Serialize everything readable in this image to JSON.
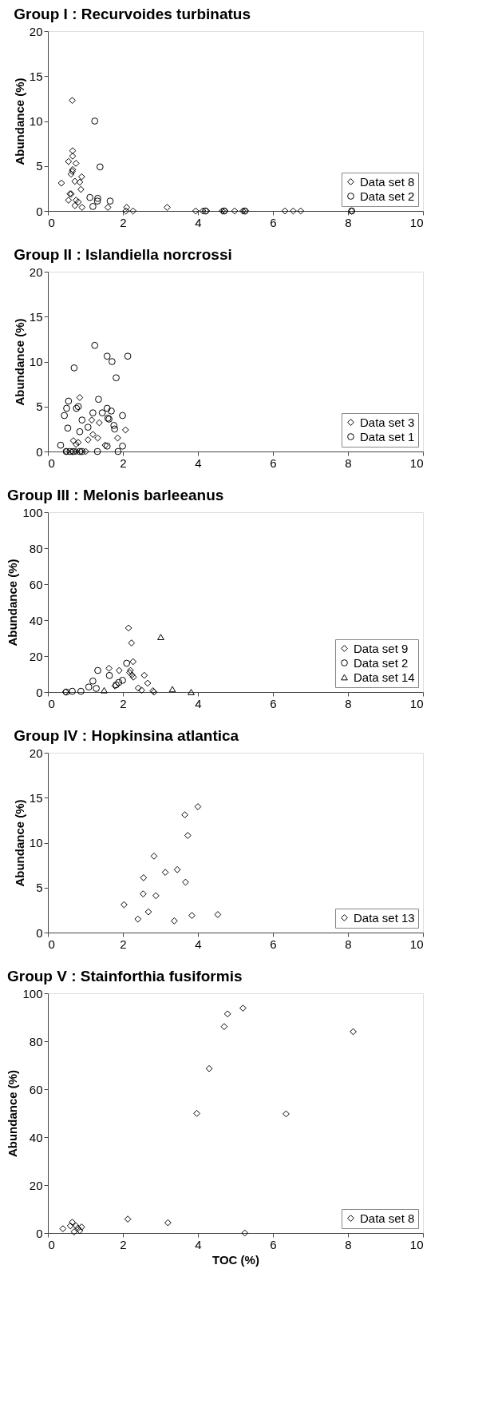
{
  "chart_data": [
    {
      "type": "scatter",
      "title": "Group I : Recurvoides turbinatus",
      "ylabel": "Abundance (%)",
      "xlim": [
        0,
        10
      ],
      "xticks": [
        0,
        2,
        4,
        6,
        8,
        10
      ],
      "ylim": [
        0,
        20
      ],
      "yticks": [
        0,
        5,
        10,
        15,
        20
      ],
      "grid": false,
      "legend": "bottom right",
      "series": [
        {
          "name": "Data set 8",
          "color": "#000000",
          "marker": "diamond",
          "x": [
            0.65,
            0.66,
            0.66,
            0.55,
            0.75,
            0.66,
            0.65,
            0.62,
            0.9,
            0.36,
            0.72,
            0.85,
            0.88,
            0.59,
            0.62,
            0.55,
            0.75,
            0.81,
            0.72,
            0.91,
            1.04,
            1.6,
            2.1,
            2.27,
            2.08,
            3.18,
            3.94,
            4.13,
            4.23,
            4.65,
            4.72,
            4.98,
            5.2,
            5.27,
            6.32,
            6.54,
            6.74,
            8.1
          ],
          "values": [
            12.3,
            6.7,
            6.1,
            5.5,
            5.3,
            4.6,
            4.4,
            4.1,
            3.8,
            3.1,
            3.3,
            3.2,
            2.4,
            1.9,
            1.9,
            1.2,
            1.2,
            1.0,
            0.6,
            0.4,
            null,
            0.4,
            0.4,
            0,
            0,
            0.4,
            0,
            0,
            0,
            0,
            0,
            0,
            0,
            0,
            0,
            0,
            0,
            0
          ]
        },
        {
          "name": "Data set 2",
          "color": "#000000",
          "marker": "circle",
          "x": [
            1.25,
            1.39,
            1.12,
            1.33,
            1.32,
            1.66,
            1.2,
            4.2,
            4.7,
            5.25,
            8.1
          ],
          "values": [
            10.0,
            4.9,
            1.5,
            1.4,
            1.1,
            1.1,
            0.5,
            0,
            0,
            0,
            0
          ]
        }
      ]
    },
    {
      "type": "scatter",
      "title": "Group II : Islandiella norcrossi",
      "ylabel": "Abundance (%)",
      "xlim": [
        0,
        10
      ],
      "xticks": [
        0,
        2,
        4,
        6,
        8,
        10
      ],
      "ylim": [
        0,
        20
      ],
      "yticks": [
        0,
        5,
        10,
        15,
        20
      ],
      "grid": false,
      "legend": "bottom right",
      "series": [
        {
          "name": "Data set 3",
          "color": "#000000",
          "marker": "diamond",
          "x": [
            0.85,
            1.17,
            1.37,
            2.07,
            1.2,
            1.33,
            1.07,
            1.86,
            0.68,
            0.81,
            0.75,
            1.53,
            0.49,
            0.65,
            0.75,
            0.88,
            1.01
          ],
          "values": [
            6.0,
            3.5,
            3.2,
            2.4,
            1.9,
            1.5,
            1.3,
            1.5,
            1.2,
            1.0,
            0.8,
            0.7,
            0,
            0,
            0,
            0,
            0
          ]
        },
        {
          "name": "Data set 1",
          "color": "#000000",
          "marker": "circle",
          "x": [
            1.25,
            1.58,
            1.71,
            2.13,
            0.7,
            1.82,
            0.55,
            0.5,
            0.81,
            0.76,
            1.35,
            0.44,
            1.2,
            1.45,
            1.58,
            1.69,
            1.99,
            0.91,
            1.6,
            1.63,
            1.76,
            1.78,
            1.07,
            0.53,
            0.85,
            0.34,
            1.99,
            1.58,
            1.32,
            1.87,
            0.49,
            0.59,
            0.68,
            0.85,
            0.91
          ],
          "values": [
            11.8,
            10.6,
            10.0,
            10.6,
            9.3,
            8.2,
            5.6,
            4.8,
            5.0,
            4.8,
            5.8,
            4.0,
            4.3,
            4.3,
            4.8,
            4.5,
            4.0,
            3.5,
            3.7,
            3.6,
            2.9,
            2.5,
            2.7,
            2.6,
            2.2,
            0.7,
            0.6,
            0.6,
            0,
            0,
            0,
            0,
            0,
            0,
            0
          ]
        }
      ]
    },
    {
      "type": "scatter",
      "title": "Group III : Melonis barleeanus",
      "ylabel": "Abundance (%)",
      "xlim": [
        0,
        10
      ],
      "xticks": [
        0,
        2,
        4,
        6,
        8,
        10
      ],
      "ylim": [
        0,
        100
      ],
      "yticks": [
        0,
        20,
        40,
        60,
        80,
        100
      ],
      "grid": false,
      "legend": "bottom right",
      "series": [
        {
          "name": "Data set 9",
          "color": "#000000",
          "marker": "diamond",
          "x": [
            2.15,
            2.23,
            2.27,
            1.63,
            1.9,
            2.57,
            2.66,
            2.38,
            2.2,
            2.18,
            2.24,
            2.28,
            1.79,
            2.41,
            2.8,
            2.83,
            0.47,
            2.5
          ],
          "values": [
            35.6,
            27.3,
            16.9,
            13.2,
            12.0,
            9.3,
            4.9,
            null,
            12.0,
            10.8,
            9.5,
            8.3,
            3.4,
            2.2,
            0.7,
            0,
            0,
            1.0
          ]
        },
        {
          "name": "Data set 2",
          "color": "#000000",
          "marker": "circle",
          "x": [
            2.1,
            1.33,
            1.64,
            1.2,
            1.09,
            1.89,
            1.82,
            1.99,
            0.88,
            0.65,
            1.29,
            0.49
          ],
          "values": [
            16.0,
            12.0,
            9.2,
            6.1,
            2.8,
            5.3,
            4.0,
            6.5,
            0.4,
            0.4,
            2.0,
            0
          ]
        },
        {
          "name": "Data set 14",
          "color": "#000000",
          "marker": "triangle",
          "x": [
            3.01,
            3.32,
            3.82,
            1.5
          ],
          "values": [
            30.6,
            1.6,
            0,
            1.0
          ]
        }
      ]
    },
    {
      "type": "scatter",
      "title": "Group IV : Hopkinsina atlantica",
      "ylabel": "Abundance (%)",
      "xlim": [
        0,
        10
      ],
      "xticks": [
        0,
        2,
        4,
        6,
        8,
        10
      ],
      "ylim": [
        0,
        20
      ],
      "yticks": [
        0,
        5,
        10,
        15,
        20
      ],
      "grid": false,
      "legend": "bottom right",
      "series": [
        {
          "name": "Data set 13",
          "color": "#000000",
          "marker": "diamond",
          "x": [
            4.0,
            3.65,
            3.73,
            2.83,
            3.45,
            3.13,
            2.55,
            3.67,
            2.54,
            2.88,
            2.03,
            2.68,
            2.4,
            3.37,
            3.84,
            4.53
          ],
          "values": [
            14.0,
            13.1,
            10.8,
            8.5,
            7.0,
            6.7,
            6.1,
            5.6,
            4.3,
            4.1,
            3.1,
            2.3,
            1.5,
            1.3,
            1.9,
            2.0
          ]
        }
      ]
    },
    {
      "type": "scatter",
      "title": "Group V : Stainforthia fusiformis",
      "xlabel": "TOC (%)",
      "ylabel": "Abundance (%)",
      "xlim": [
        0,
        10
      ],
      "xticks": [
        0,
        2,
        4,
        6,
        8,
        10
      ],
      "ylim": [
        0,
        100
      ],
      "yticks": [
        0,
        20,
        40,
        60,
        80,
        100
      ],
      "grid": false,
      "legend": "bottom right",
      "series": [
        {
          "name": "Data set 8",
          "color": "#000000",
          "marker": "diamond",
          "x": [
            5.2,
            4.79,
            4.7,
            8.14,
            4.3,
            3.97,
            6.35,
            2.13,
            3.2,
            5.25,
            0.4,
            0.6,
            0.65,
            0.7,
            0.75,
            0.8,
            0.85,
            0.9,
            0.7
          ],
          "values": [
            93.8,
            91.4,
            86.1,
            84.0,
            68.6,
            49.9,
            49.7,
            5.8,
            4.3,
            0,
            1.8,
            3.0,
            4.5,
            null,
            3.0,
            2.0,
            1.0,
            2.5,
            0.5
          ]
        }
      ]
    }
  ]
}
